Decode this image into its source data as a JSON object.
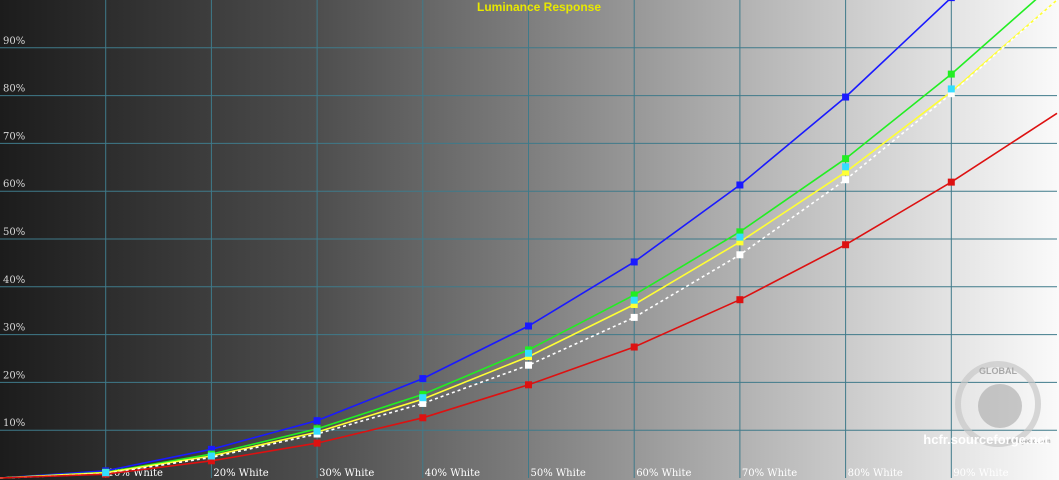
{
  "chart_data": {
    "type": "line",
    "title": "Luminance Response",
    "x": [
      0,
      10,
      20,
      30,
      40,
      50,
      60,
      70,
      80,
      90,
      100
    ],
    "xticks": [
      "10% White",
      "20% White",
      "30% White",
      "40% White",
      "50% White",
      "60% White",
      "70% White",
      "80% White",
      "90% White"
    ],
    "yticks": [
      "10%",
      "20%",
      "30%",
      "40%",
      "50%",
      "60%",
      "70%",
      "80%",
      "90%"
    ],
    "ylim": [
      0,
      100
    ],
    "xlim": [
      0,
      100
    ],
    "grid": true,
    "series": [
      {
        "name": "",
        "color": "#1a1aff",
        "style": "solid",
        "values": [
          0,
          1.5,
          6,
          12,
          20.8,
          31.8,
          45.2,
          61.3,
          79.7,
          100.5,
          118
        ]
      },
      {
        "name": "",
        "color": "#22ee22",
        "style": "solid",
        "values": [
          0,
          1.2,
          5,
          10.3,
          17.5,
          26.8,
          38.3,
          51.5,
          66.8,
          84.5,
          104
        ]
      },
      {
        "name": "",
        "color": "#ffff33",
        "style": "solid",
        "values": [
          0,
          1.1,
          4.6,
          9.6,
          16.5,
          25.4,
          36.3,
          49.4,
          64,
          80.8,
          100
        ]
      },
      {
        "name": "",
        "color": "#ffffff",
        "style": "dashed",
        "values": [
          0,
          0.9,
          4.3,
          9.2,
          15.6,
          23.6,
          33.6,
          46.7,
          62.4,
          80.4,
          100
        ]
      },
      {
        "name": "",
        "color": "#dd1111",
        "style": "solid",
        "values": [
          0,
          0.8,
          3.6,
          7.3,
          12.6,
          19.5,
          27.4,
          37.3,
          48.8,
          61.9,
          76.3
        ]
      }
    ],
    "cyan_markers": [
      1.1,
      4.6,
      9.8,
      16.8,
      26.1,
      37.2,
      50.4,
      65.1,
      81.4
    ]
  },
  "credit": "hcfr.sourceforge.net",
  "watermark": "GLOBAL",
  "watermark_url": "www.gecid.com"
}
